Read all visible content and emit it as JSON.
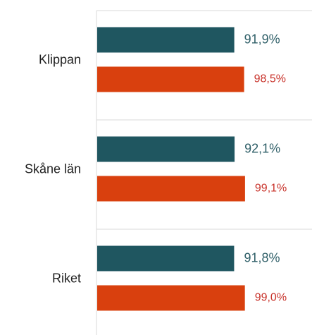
{
  "chart_data": {
    "type": "hbar",
    "categories": [
      "Klippan",
      "Skåne län",
      "Riket"
    ],
    "series": [
      {
        "color": "#1f5660",
        "label_color": "#2f5f68",
        "values": [
          91.9,
          92.1,
          91.8
        ],
        "value_labels": [
          "91,9%",
          "92,1%",
          "91,8%"
        ]
      },
      {
        "color": "#d9400e",
        "label_color": "#c8322a",
        "values": [
          98.5,
          99.1,
          99.0
        ],
        "value_labels": [
          "98,5%",
          "99,1%",
          "99,0%"
        ]
      }
    ],
    "xlim": [
      0,
      144
    ]
  }
}
